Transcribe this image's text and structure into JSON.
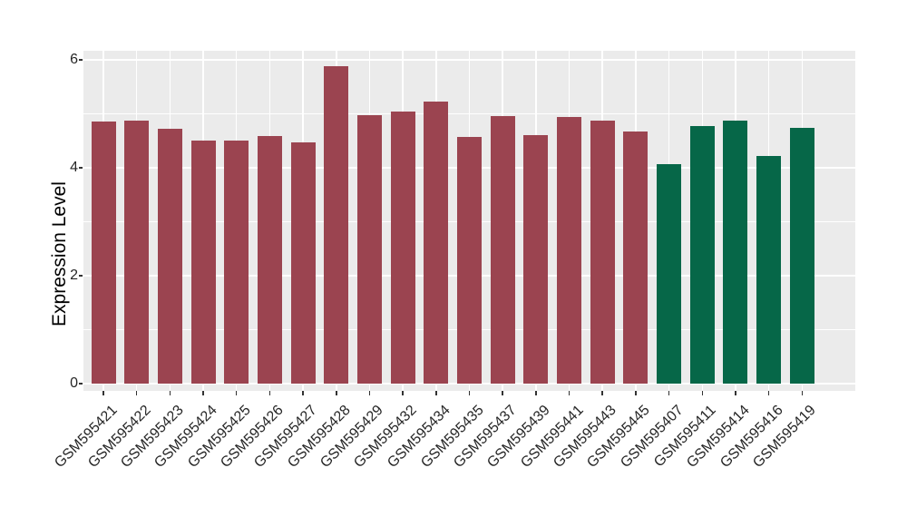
{
  "figure": {
    "background": "#FFFFFF"
  },
  "chart_data": {
    "type": "bar",
    "title": "",
    "xlabel": "",
    "ylabel": "Expression Level",
    "ylim": [
      0,
      6.17
    ],
    "yticks": [
      0,
      2,
      4,
      6
    ],
    "yminor_ticks": [
      1,
      3,
      5
    ],
    "grid": "on",
    "legend": "none",
    "panel_background": "#EBEBEB",
    "gridline_color": "#FFFFFF",
    "tick_color": "#333333",
    "axis_text_color": "#262626",
    "categories": [
      "GSM595421",
      "GSM595422",
      "GSM595423",
      "GSM595424",
      "GSM595425",
      "GSM595426",
      "GSM595427",
      "GSM595428",
      "GSM595429",
      "GSM595432",
      "GSM595434",
      "GSM595435",
      "GSM595437",
      "GSM595439",
      "GSM595441",
      "GSM595443",
      "GSM595445",
      "GSM595407",
      "GSM595411",
      "GSM595414",
      "GSM595416",
      "GSM595419"
    ],
    "values": [
      4.86,
      4.88,
      4.73,
      4.51,
      4.51,
      4.59,
      4.47,
      5.88,
      4.97,
      5.05,
      5.23,
      4.58,
      4.96,
      4.6,
      4.94,
      4.87,
      4.67,
      4.07,
      4.78,
      4.87,
      4.22,
      4.74
    ],
    "bar_colors": [
      "#9B4450",
      "#9B4450",
      "#9B4450",
      "#9B4450",
      "#9B4450",
      "#9B4450",
      "#9B4450",
      "#9B4450",
      "#9B4450",
      "#9B4450",
      "#9B4450",
      "#9B4450",
      "#9B4450",
      "#9B4450",
      "#9B4450",
      "#9B4450",
      "#9B4450",
      "#066748",
      "#066748",
      "#066748",
      "#066748",
      "#066748"
    ],
    "group_colors": {
      "group_1": "#9B4450",
      "group_2": "#066748"
    }
  }
}
